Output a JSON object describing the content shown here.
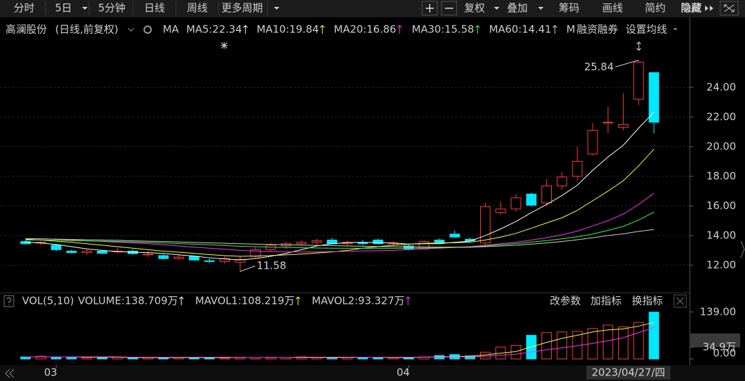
{
  "toolbar": {
    "periods": [
      "分时",
      "5日",
      "5分钟",
      "日线",
      "周线",
      "更多周期"
    ],
    "tools": [
      "复权",
      "叠加",
      "筹码",
      "画线",
      "简约",
      "隐藏"
    ]
  },
  "header": {
    "stock": "高澜股份",
    "period": "(日线,前复权)",
    "ma_label": "MA",
    "truncated": "M",
    "extra": [
      "融资融券",
      "设置均线"
    ]
  },
  "indicator_tools": [
    "改参数",
    "加指标",
    "换指标"
  ],
  "chart_data": [
    {
      "type": "candlestick",
      "categories": [
        null,
        null,
        "03",
        null,
        null,
        null,
        null,
        null,
        null,
        null,
        null,
        null,
        null,
        null,
        null,
        null,
        null,
        null,
        null,
        null,
        null,
        null,
        null,
        null,
        null,
        "04",
        null,
        null,
        null,
        null,
        null,
        null,
        null,
        null,
        null,
        null,
        null,
        null,
        null,
        null,
        null,
        null
      ],
      "open": [
        13.6,
        13.5,
        13.35,
        12.95,
        12.85,
        12.95,
        12.9,
        12.95,
        12.7,
        12.65,
        12.45,
        12.6,
        12.3,
        12.25,
        12.2,
        12.6,
        13.05,
        13.3,
        13.45,
        13.55,
        13.7,
        13.45,
        13.5,
        13.7,
        13.45,
        13.3,
        13.1,
        13.7,
        14.1,
        13.75,
        13.5,
        15.55,
        15.8,
        16.8,
        16.2,
        17.35,
        18.0,
        19.5,
        21.6,
        21.3,
        23.2,
        25.0
      ],
      "high": [
        13.7,
        13.65,
        13.45,
        13.05,
        13.05,
        13.0,
        13.15,
        13.05,
        12.95,
        12.75,
        12.7,
        12.65,
        12.45,
        12.6,
        12.6,
        13.2,
        13.5,
        13.6,
        13.7,
        13.8,
        13.85,
        13.65,
        13.7,
        13.8,
        13.6,
        13.45,
        13.7,
        13.8,
        14.35,
        13.85,
        16.2,
        16.3,
        16.8,
        16.9,
        17.8,
        18.3,
        20.0,
        21.6,
        22.7,
        23.6,
        25.84,
        25.0
      ],
      "low": [
        13.4,
        13.35,
        12.95,
        12.8,
        12.7,
        12.75,
        12.8,
        12.7,
        12.55,
        12.35,
        12.35,
        12.3,
        12.15,
        12.1,
        11.58,
        12.5,
        12.95,
        13.1,
        13.3,
        13.4,
        13.4,
        13.3,
        13.35,
        13.4,
        13.3,
        13.0,
        13.05,
        13.5,
        13.85,
        13.6,
        13.4,
        15.4,
        15.6,
        15.95,
        16.0,
        17.1,
        17.7,
        19.4,
        20.9,
        21.1,
        22.8,
        20.9
      ],
      "close": [
        13.45,
        13.55,
        13.05,
        12.85,
        12.95,
        12.8,
        12.95,
        12.78,
        12.75,
        12.45,
        12.55,
        12.35,
        12.25,
        12.45,
        12.4,
        13.05,
        13.35,
        13.45,
        13.55,
        13.65,
        13.45,
        13.55,
        13.45,
        13.45,
        13.5,
        13.1,
        13.6,
        13.55,
        13.9,
        13.65,
        15.95,
        15.8,
        16.55,
        16.05,
        17.35,
        17.95,
        19.0,
        21.1,
        21.65,
        21.5,
        25.7,
        21.65
      ],
      "up_color": "#ff3b3b",
      "down_color": "#00e8ff",
      "series": [
        {
          "name": "MA5:22.34",
          "color": "#ffffff",
          "values": [
            13.55,
            13.5,
            13.4,
            13.25,
            13.1,
            13.0,
            12.92,
            12.88,
            12.85,
            12.8,
            12.7,
            12.62,
            12.5,
            12.42,
            12.35,
            12.45,
            12.6,
            12.8,
            13.05,
            13.3,
            13.45,
            13.52,
            13.55,
            13.52,
            13.5,
            13.42,
            13.45,
            13.45,
            13.55,
            13.62,
            14.0,
            14.45,
            14.95,
            15.55,
            16.1,
            16.7,
            17.4,
            18.4,
            19.3,
            20.1,
            21.25,
            22.34
          ]
        },
        {
          "name": "MA10:19.84",
          "color": "#ffff33",
          "values": [
            13.75,
            13.7,
            13.62,
            13.55,
            13.45,
            13.35,
            13.25,
            13.15,
            13.05,
            12.95,
            12.88,
            12.8,
            12.72,
            12.65,
            12.6,
            12.62,
            12.65,
            12.7,
            12.75,
            12.82,
            12.9,
            13.0,
            13.15,
            13.25,
            13.35,
            13.42,
            13.48,
            13.5,
            13.52,
            13.55,
            13.7,
            13.9,
            14.15,
            14.5,
            14.85,
            15.2,
            15.7,
            16.35,
            17.0,
            17.7,
            18.7,
            19.84
          ]
        },
        {
          "name": "MA20:16.86",
          "color": "#ff33ff",
          "values": [
            13.8,
            13.78,
            13.75,
            13.7,
            13.65,
            13.6,
            13.55,
            13.5,
            13.45,
            13.38,
            13.3,
            13.22,
            13.15,
            13.08,
            13.0,
            12.95,
            12.92,
            12.9,
            12.9,
            12.9,
            12.92,
            12.94,
            12.96,
            12.98,
            13.0,
            13.05,
            13.1,
            13.15,
            13.2,
            13.25,
            13.35,
            13.45,
            13.55,
            13.7,
            13.85,
            14.05,
            14.3,
            14.65,
            15.0,
            15.45,
            16.1,
            16.86
          ]
        },
        {
          "name": "MA30:15.58",
          "color": "#33ff33",
          "values": [
            13.7,
            13.7,
            13.68,
            13.66,
            13.64,
            13.62,
            13.6,
            13.57,
            13.54,
            13.5,
            13.46,
            13.42,
            13.38,
            13.33,
            13.28,
            13.25,
            13.22,
            13.2,
            13.18,
            13.16,
            13.15,
            13.14,
            13.14,
            13.14,
            13.14,
            13.15,
            13.16,
            13.18,
            13.2,
            13.22,
            13.3,
            13.38,
            13.46,
            13.56,
            13.66,
            13.78,
            13.92,
            14.1,
            14.35,
            14.62,
            15.05,
            15.58
          ]
        },
        {
          "name": "MA60:14.41",
          "color": "#d0d0d0",
          "values": [
            13.8,
            13.78,
            13.76,
            13.74,
            13.72,
            13.7,
            13.68,
            13.65,
            13.62,
            13.6,
            13.57,
            13.54,
            13.51,
            13.48,
            13.45,
            13.42,
            13.4,
            13.38,
            13.36,
            13.34,
            13.32,
            13.3,
            13.28,
            13.26,
            13.25,
            13.24,
            13.23,
            13.22,
            13.22,
            13.22,
            13.25,
            13.3,
            13.35,
            13.42,
            13.5,
            13.6,
            13.72,
            13.85,
            14.0,
            14.12,
            14.28,
            14.41
          ]
        }
      ],
      "ylim": [
        11.3,
        27.2
      ],
      "yticks": [
        {
          "value": 12,
          "label": "12.00"
        },
        {
          "value": 14,
          "label": "14.00"
        },
        {
          "value": 16,
          "label": "16.00"
        },
        {
          "value": 18,
          "label": "18.00"
        },
        {
          "value": 20,
          "label": "20.00"
        },
        {
          "value": 22,
          "label": "22.00"
        },
        {
          "value": 24,
          "label": "24.00"
        }
      ],
      "grid": true
    },
    {
      "type": "bar",
      "title": "VOL(5,10)",
      "cursor_date": "2023/04/27/四",
      "series": [
        {
          "name": "VOLUME:138.709万",
          "color": "#ffffff",
          "values": [
            6,
            8,
            5,
            4,
            4,
            4,
            5,
            4,
            4,
            3,
            4,
            4,
            3,
            3,
            5,
            4,
            5,
            4,
            6,
            5,
            4,
            5,
            4,
            3,
            4,
            4,
            6,
            10,
            13,
            9,
            20,
            35,
            40,
            70,
            78,
            80,
            82,
            90,
            100,
            95,
            108,
            138.709
          ]
        },
        {
          "name": "MAVOL1:108.219万",
          "color": "#ffff33",
          "values": [
            6,
            6,
            6,
            6,
            5,
            5,
            5,
            4,
            4,
            4,
            4,
            4,
            4,
            4,
            4,
            4,
            4,
            4,
            5,
            5,
            5,
            5,
            5,
            5,
            4,
            4,
            5,
            6,
            7,
            8,
            12,
            17,
            22,
            36,
            49,
            61,
            70,
            80,
            86,
            89,
            97,
            108.219
          ]
        },
        {
          "name": "MAVOL2:93.327万",
          "color": "#ff33ff",
          "values": [
            6,
            6,
            6,
            6,
            6,
            6,
            6,
            5,
            5,
            5,
            5,
            5,
            5,
            5,
            4,
            4,
            4,
            4,
            4,
            4,
            4,
            4,
            5,
            5,
            5,
            5,
            5,
            5,
            6,
            6,
            8,
            11,
            14,
            21,
            27,
            33,
            39,
            46,
            54,
            63,
            78,
            93.327
          ]
        }
      ],
      "ylim": [
        0,
        155
      ],
      "yticks": [
        {
          "value": 0,
          "label": "0.00"
        },
        {
          "value": 34.9,
          "label": "34.9万"
        },
        {
          "value": 139,
          "label": "139.00"
        }
      ]
    }
  ]
}
